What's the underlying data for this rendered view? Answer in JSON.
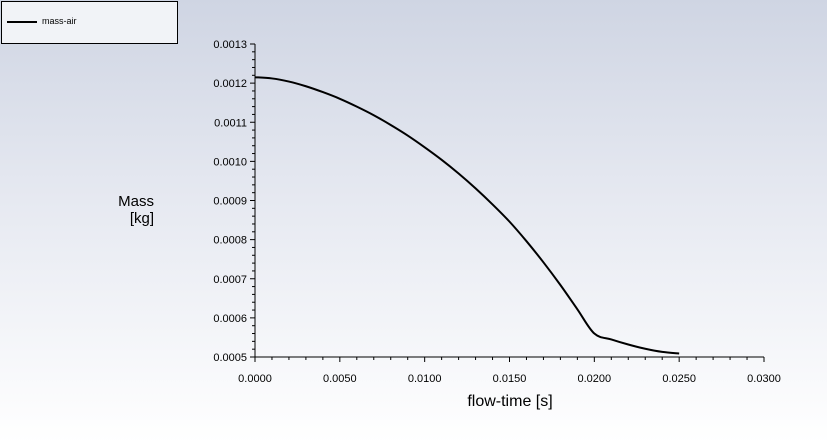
{
  "chart_data": {
    "type": "line",
    "title": "",
    "xlabel": "flow-time [s]",
    "ylabel_lines": [
      "Mass",
      "[kg]"
    ],
    "xlim": [
      0.0,
      0.03
    ],
    "ylim": [
      0.0005,
      0.0013
    ],
    "x_ticks": [
      "0.0000",
      "0.0050",
      "0.0100",
      "0.0150",
      "0.0200",
      "0.0250",
      "0.0300"
    ],
    "y_ticks": [
      "0.0005",
      "0.0006",
      "0.0007",
      "0.0008",
      "0.0009",
      "0.0010",
      "0.0011",
      "0.0012",
      "0.0013"
    ],
    "legend": {
      "placement": "top-left"
    },
    "grid": false,
    "series": [
      {
        "name": "mass-air",
        "color": "#000000",
        "x": [
          0.0,
          0.001,
          0.002,
          0.003,
          0.004,
          0.005,
          0.006,
          0.007,
          0.008,
          0.009,
          0.01,
          0.011,
          0.012,
          0.013,
          0.014,
          0.015,
          0.016,
          0.017,
          0.018,
          0.019,
          0.02,
          0.021,
          0.022,
          0.023,
          0.024,
          0.025
        ],
        "y": [
          0.001215,
          0.001212,
          0.001204,
          0.001192,
          0.001177,
          0.00116,
          0.00114,
          0.001118,
          0.001093,
          0.001066,
          0.001036,
          0.001004,
          0.000969,
          0.000931,
          0.00089,
          0.000846,
          0.000796,
          0.000742,
          0.000684,
          0.000622,
          0.00056,
          0.000545,
          0.000532,
          0.000521,
          0.000513,
          0.000509
        ]
      }
    ]
  }
}
